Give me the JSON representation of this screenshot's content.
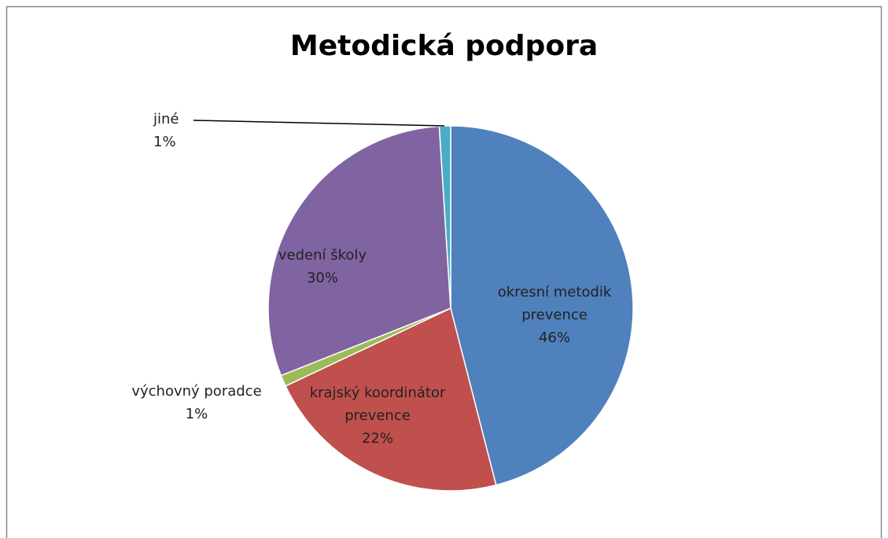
{
  "chart_data": {
    "type": "pie",
    "title": "Metodická podpora",
    "categories": [
      "okresní metodik prevence",
      "krajský koordinátor prevence",
      "výchovný poradce",
      "vedení školy",
      "jiné"
    ],
    "values": [
      46,
      22,
      1,
      30,
      1
    ],
    "value_labels": [
      "46%",
      "22%",
      "1%",
      "30%",
      "1%"
    ],
    "colors": [
      "#4f81bd",
      "#c0504d",
      "#9bbb59",
      "#8064a2",
      "#4bacc6"
    ]
  }
}
